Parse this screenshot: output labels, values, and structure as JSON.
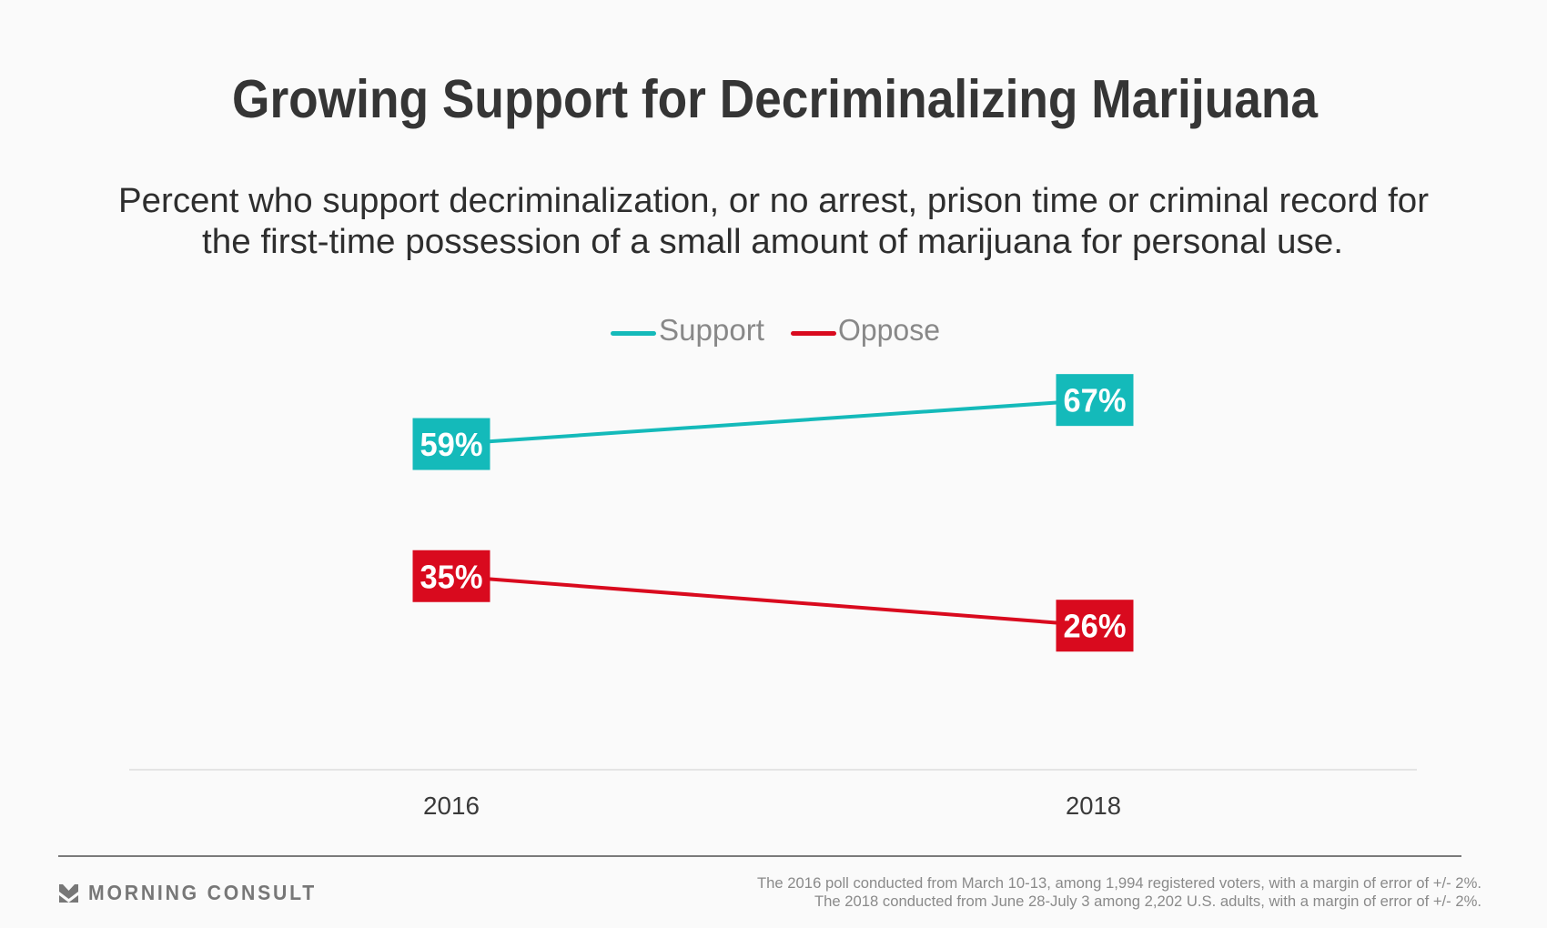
{
  "header": {
    "title": "Growing Support for Decriminalizing Marijuana",
    "subtitle_lines": [
      "Percent who support decriminalization, or no arrest, prison time or criminal record for",
      "the first-time possession of a small amount of marijuana for personal use."
    ]
  },
  "legend": {
    "items": [
      {
        "label": "Support",
        "color": "#14BABA"
      },
      {
        "label": "Oppose",
        "color": "#D90A1E"
      }
    ]
  },
  "chart_data": {
    "type": "line",
    "title": "Growing Support for Decriminalizing Marijuana",
    "subtitle": "Percent who support decriminalization, or no arrest, prison time or criminal record for the first-time possession of a small amount of marijuana for personal use.",
    "xlabel": "",
    "ylabel": "",
    "categories": [
      "2016",
      "2018"
    ],
    "series": [
      {
        "name": "Support",
        "values": [
          59,
          67
        ],
        "labels": [
          "59%",
          "67%"
        ],
        "color": "#14BABA"
      },
      {
        "name": "Oppose",
        "values": [
          35,
          26
        ],
        "labels": [
          "35%",
          "26%"
        ],
        "color": "#D90A1E"
      }
    ],
    "ylim": [
      0,
      100
    ],
    "grid": false,
    "y_axis_visible": false,
    "legend_position": "top-center",
    "data_labels": true
  },
  "footer": {
    "brand": "MORNING CONSULT",
    "brand_icon": "morning-consult-logo-icon",
    "notes": [
      "The 2016 poll conducted from March 10-13, among 1,994 registered voters, with a margin of error of +/- 2%.",
      "The 2018 conducted from June 28-July 3 among 2,202 U.S. adults, with a margin of error of +/- 2%."
    ]
  }
}
